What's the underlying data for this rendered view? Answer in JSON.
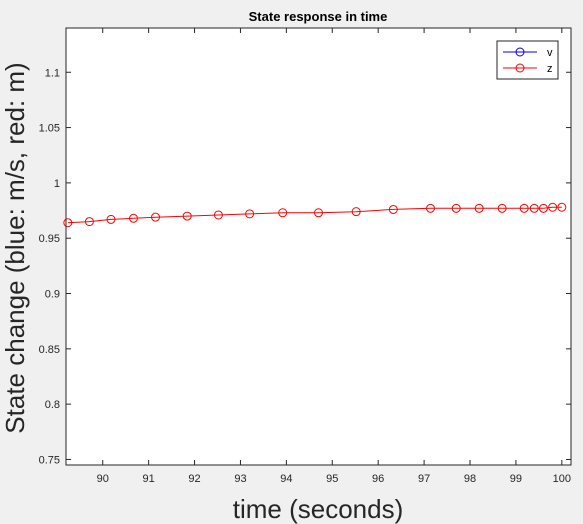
{
  "figure": {
    "background": "#f0f0f0"
  },
  "chart_data": {
    "type": "line",
    "title": "State response in time",
    "xlabel": "time (seconds)",
    "ylabel": "State change (blue: m/s, red: m)",
    "xlim": [
      89.2,
      100.2
    ],
    "ylim": [
      0.745,
      1.14
    ],
    "xticks": [
      90,
      91,
      92,
      93,
      94,
      95,
      96,
      97,
      98,
      99,
      100
    ],
    "xtick_labels": [
      "90",
      "91",
      "92",
      "93",
      "94",
      "95",
      "96",
      "97",
      "98",
      "99",
      "100"
    ],
    "yticks": [
      0.75,
      0.8,
      0.85,
      0.9,
      0.95,
      1,
      1.05,
      1.1
    ],
    "ytick_labels": [
      "0.75",
      "0.8",
      "0.85",
      "0.9",
      "0.95",
      "1",
      "1.05",
      "1.1"
    ],
    "grid": false,
    "legend_position": "top-right",
    "series": [
      {
        "name": "v",
        "color": "#0000ff",
        "marker": "circle",
        "x": [],
        "y": []
      },
      {
        "name": "z",
        "color": "#ff0000",
        "marker": "circle",
        "x": [
          89.24,
          89.71,
          90.18,
          90.67,
          91.15,
          91.84,
          92.52,
          93.2,
          93.92,
          94.7,
          95.52,
          96.33,
          97.14,
          97.7,
          98.2,
          98.7,
          99.18,
          99.4,
          99.6,
          99.8,
          100.0
        ],
        "y": [
          0.964,
          0.965,
          0.967,
          0.968,
          0.969,
          0.97,
          0.971,
          0.972,
          0.973,
          0.973,
          0.974,
          0.976,
          0.977,
          0.977,
          0.977,
          0.977,
          0.977,
          0.977,
          0.977,
          0.978,
          0.978
        ]
      }
    ]
  }
}
